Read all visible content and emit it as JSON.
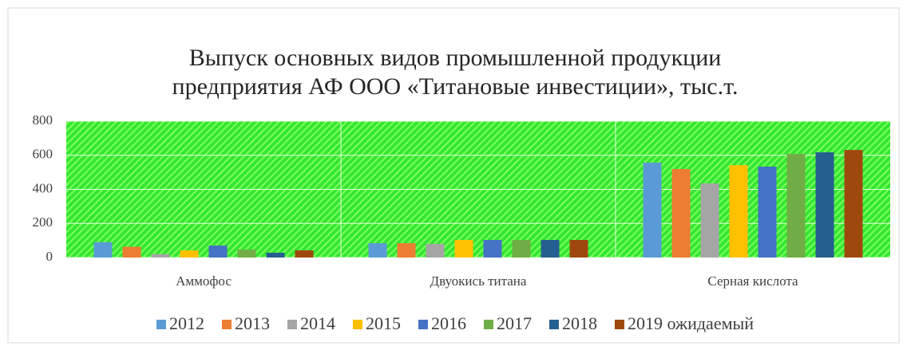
{
  "chart_data": {
    "type": "bar",
    "title": [
      "Выпуск основных видов промышленной продукции",
      "предприятия АФ ООО «Титановые инвестиции», тыс.т."
    ],
    "categories": [
      "Аммофос",
      "Двуокись титана",
      "Серная кислота"
    ],
    "series": [
      {
        "name": "2012",
        "color": "#5b9bd5",
        "values": [
          90,
          84,
          557
        ]
      },
      {
        "name": "2013",
        "color": "#ed7d31",
        "values": [
          63,
          84,
          519
        ]
      },
      {
        "name": "2014",
        "color": "#a5a5a5",
        "values": [
          20,
          80,
          435
        ]
      },
      {
        "name": "2015",
        "color": "#ffc000",
        "values": [
          42,
          103,
          542
        ]
      },
      {
        "name": "2016",
        "color": "#4472c4",
        "values": [
          70,
          103,
          533
        ]
      },
      {
        "name": "2017",
        "color": "#70ad47",
        "values": [
          47,
          103,
          608
        ]
      },
      {
        "name": "2018",
        "color": "#255e91",
        "values": [
          28,
          103,
          617
        ]
      },
      {
        "name": "2019 ожидаемый",
        "color": "#9e480e",
        "values": [
          42,
          103,
          631
        ]
      }
    ],
    "ylim": [
      0,
      800
    ],
    "yticks": [
      0,
      200,
      400,
      600,
      800
    ],
    "grid": true,
    "legend": "bottom"
  }
}
